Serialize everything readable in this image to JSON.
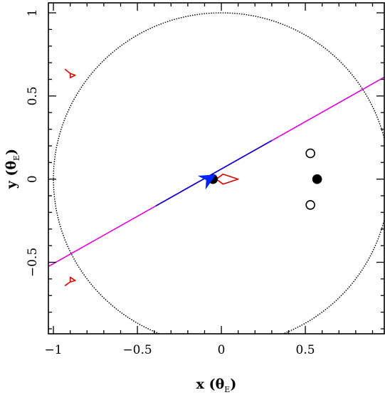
{
  "chart_data": {
    "type": "scatter",
    "title": "",
    "xlabel": "x (θE)",
    "ylabel": "y (θE)",
    "xlabel_parts": {
      "main": "x (θ",
      "sub": "E",
      "close": ")"
    },
    "ylabel_parts": {
      "main": "y (θ",
      "sub": "E",
      "close": ")"
    },
    "xlim": [
      -1.03,
      0.97
    ],
    "ylim": [
      -0.93,
      1.06
    ],
    "x_ticks": [
      -1,
      -0.5,
      0,
      0.5
    ],
    "x_tick_labels": [
      "−1",
      "−0.5",
      "0",
      "0.5"
    ],
    "y_ticks": [
      -0.5,
      0,
      0.5,
      1
    ],
    "y_tick_labels": [
      "−0.5",
      "0",
      "0.5",
      "1"
    ],
    "grid": false,
    "einstein_ring": {
      "center": [
        0,
        0
      ],
      "radius": 1,
      "style": "dotted",
      "color": "#000000"
    },
    "trajectory": {
      "slope": 0.569,
      "intercept": 0.061,
      "x_range": [
        -1.03,
        0.97
      ],
      "inner_x_range": [
        -0.39,
        0.3
      ],
      "outer_color": "#dd00dd",
      "inner_color": "#0000cc"
    },
    "source_marker": {
      "x": -0.08,
      "y": 0.0,
      "color": "#0022ff",
      "size": 0.035
    },
    "lens_masses": [
      {
        "x": -0.05,
        "y": 0.0,
        "filled": true
      },
      {
        "x": 0.57,
        "y": 0.0,
        "filled": true
      },
      {
        "x": 0.53,
        "y": 0.155,
        "filled": false
      },
      {
        "x": 0.53,
        "y": -0.155,
        "filled": false
      }
    ],
    "caustics": [
      {
        "name": "central",
        "color": "#dd0000",
        "points": [
          [
            -0.03,
            0.0
          ],
          [
            0.01,
            0.03
          ],
          [
            0.1,
            0.0
          ],
          [
            0.01,
            -0.03
          ]
        ]
      },
      {
        "name": "planetary-upper",
        "color": "#dd0000",
        "points": [
          [
            -0.93,
            0.66
          ],
          [
            -0.9,
            0.635
          ],
          [
            -0.87,
            0.625
          ],
          [
            -0.9,
            0.61
          ],
          [
            -0.9,
            0.635
          ]
        ]
      },
      {
        "name": "planetary-lower",
        "color": "#dd0000",
        "points": [
          [
            -0.93,
            -0.64
          ],
          [
            -0.9,
            -0.618
          ],
          [
            -0.87,
            -0.61
          ],
          [
            -0.9,
            -0.59
          ],
          [
            -0.9,
            -0.618
          ]
        ]
      }
    ]
  }
}
